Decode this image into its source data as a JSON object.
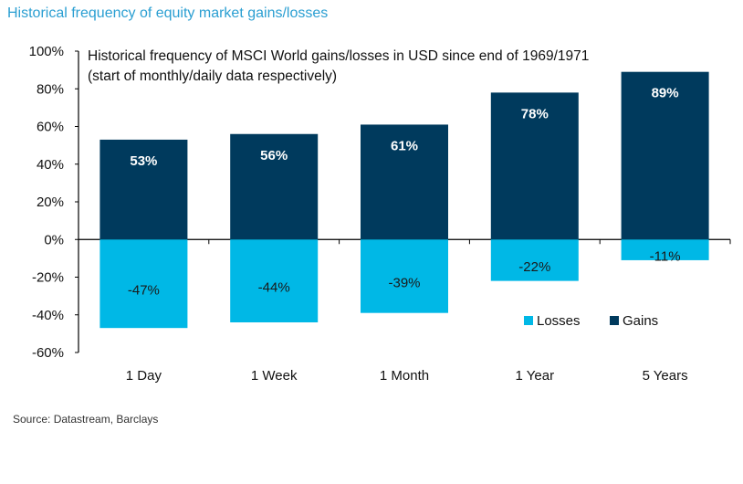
{
  "header": {
    "title": "Historical frequency of equity market gains/losses"
  },
  "footer": {
    "source": "Source: Datastream, Barclays"
  },
  "colors": {
    "gains": "#003a5d",
    "losses": "#00b8e6",
    "heading": "#2b9fd2"
  },
  "chart_data": {
    "type": "bar",
    "title": "Historical frequency of MSCI World gains/losses  in USD since  end of 1969/1971",
    "subtitle": "(start of monthly/daily data respectively)",
    "categories": [
      "1 Day",
      "1 Week",
      "1 Month",
      "1 Year",
      "5 Years"
    ],
    "series": [
      {
        "name": "Gains",
        "values": [
          53,
          56,
          61,
          78,
          89
        ],
        "labels": [
          "53%",
          "56%",
          "61%",
          "78%",
          "89%"
        ]
      },
      {
        "name": "Losses",
        "values": [
          -47,
          -44,
          -39,
          -22,
          -11
        ],
        "labels": [
          "-47%",
          "-44%",
          "-39%",
          "-22%",
          "-11%"
        ]
      }
    ],
    "yticks": [
      100,
      80,
      60,
      40,
      20,
      0,
      -20,
      -40,
      -60
    ],
    "ytick_labels": [
      "100%",
      "80%",
      "60%",
      "40%",
      "20%",
      "0%",
      "-20%",
      "-40%",
      "-60%"
    ],
    "ylim": [
      -60,
      100
    ],
    "legend": {
      "entries": [
        "Losses",
        "Gains"
      ],
      "position": "bottom-right"
    },
    "grid": false,
    "xlabel": "",
    "ylabel": ""
  }
}
